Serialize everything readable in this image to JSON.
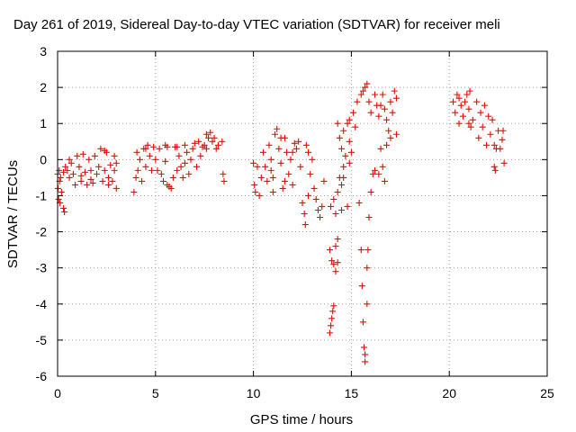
{
  "chart_data": {
    "type": "scatter",
    "title": "Day 261 of 2019, Sidereal Day-to-day VTEC variation (SDTVAR) for receiver meli",
    "xlabel": "GPS time / hours",
    "ylabel": "SDTVAR / TECUs",
    "xlim": [
      0,
      25
    ],
    "ylim": [
      -6,
      3
    ],
    "xticks": [
      0,
      5,
      10,
      15,
      20,
      25
    ],
    "xtick_labels": [
      "0",
      "5",
      "10",
      "15",
      "20",
      "25"
    ],
    "yticks": [
      -6,
      -5,
      -4,
      -3,
      -2,
      -1,
      0,
      1,
      2,
      3
    ],
    "ytick_labels": [
      "-6",
      "-5",
      "-4",
      "-3",
      "-2",
      "-1",
      "0",
      "1",
      "2",
      "3"
    ],
    "grid": true,
    "marker": "+",
    "color": "#ff0000",
    "series": [
      {
        "name": "SDTVAR",
        "points": [
          [
            0.0,
            -0.4
          ],
          [
            0.02,
            -0.8
          ],
          [
            0.05,
            -1.1
          ],
          [
            0.08,
            -0.3
          ],
          [
            0.1,
            -0.6
          ],
          [
            0.12,
            -1.2
          ],
          [
            0.15,
            -0.5
          ],
          [
            0.2,
            -0.9
          ],
          [
            0.3,
            -1.35
          ],
          [
            0.35,
            -1.45
          ],
          [
            0.3,
            -0.35
          ],
          [
            0.4,
            -0.2
          ],
          [
            0.5,
            -0.3
          ],
          [
            0.6,
            -0.5
          ],
          [
            0.7,
            -0.1
          ],
          [
            0.8,
            -0.4
          ],
          [
            0.9,
            -0.7
          ],
          [
            1.0,
            0.1
          ],
          [
            1.1,
            -0.2
          ],
          [
            1.2,
            -0.6
          ],
          [
            1.3,
            0.15
          ],
          [
            1.4,
            -0.35
          ],
          [
            1.5,
            -0.7
          ],
          [
            1.6,
            0.0
          ],
          [
            1.7,
            -0.3
          ],
          [
            1.8,
            -0.65
          ],
          [
            1.9,
            0.1
          ],
          [
            2.0,
            -0.4
          ],
          [
            2.1,
            -0.2
          ],
          [
            2.2,
            0.3
          ],
          [
            2.3,
            -0.6
          ],
          [
            2.4,
            -0.3
          ],
          [
            2.5,
            0.2
          ],
          [
            2.6,
            -0.5
          ],
          [
            2.7,
            -0.15
          ],
          [
            2.8,
            -0.6
          ],
          [
            2.9,
            -0.3
          ],
          [
            3.0,
            -0.8
          ],
          [
            3.0,
            -0.1
          ],
          [
            2.9,
            0.1
          ],
          [
            0.6,
            0.0
          ],
          [
            1.2,
            -0.45
          ],
          [
            1.7,
            -0.55
          ],
          [
            2.4,
            0.25
          ],
          [
            2.6,
            -0.7
          ],
          [
            3.9,
            -0.9
          ],
          [
            4.0,
            -0.5
          ],
          [
            4.05,
            0.2
          ],
          [
            4.1,
            -0.3
          ],
          [
            4.2,
            0.0
          ],
          [
            4.3,
            -0.6
          ],
          [
            4.4,
            0.3
          ],
          [
            4.5,
            -0.2
          ],
          [
            4.6,
            0.4
          ],
          [
            4.7,
            0.1
          ],
          [
            4.8,
            -0.3
          ],
          [
            4.9,
            0.35
          ],
          [
            5.0,
            0.0
          ],
          [
            5.1,
            -0.3
          ],
          [
            5.2,
            0.3
          ],
          [
            5.3,
            -0.4
          ],
          [
            5.4,
            -0.6
          ],
          [
            5.5,
            0.4
          ],
          [
            5.6,
            -0.7
          ],
          [
            5.7,
            -0.75
          ],
          [
            5.8,
            -0.8
          ],
          [
            5.9,
            -0.5
          ],
          [
            6.0,
            0.35
          ],
          [
            6.1,
            -0.3
          ],
          [
            6.2,
            0.1
          ],
          [
            6.3,
            -0.2
          ],
          [
            6.4,
            -0.5
          ],
          [
            6.5,
            0.4
          ],
          [
            6.6,
            0.2
          ],
          [
            6.7,
            -0.4
          ],
          [
            6.8,
            0.0
          ],
          [
            6.9,
            0.3
          ],
          [
            7.0,
            0.45
          ],
          [
            7.1,
            -0.2
          ],
          [
            7.2,
            0.5
          ],
          [
            7.3,
            0.1
          ],
          [
            7.4,
            0.35
          ],
          [
            7.5,
            0.4
          ],
          [
            7.6,
            0.7
          ],
          [
            7.7,
            0.6
          ],
          [
            7.8,
            0.75
          ],
          [
            7.9,
            0.5
          ],
          [
            8.0,
            0.6
          ],
          [
            8.1,
            0.3
          ],
          [
            8.2,
            0.4
          ],
          [
            8.4,
            0.5
          ],
          [
            8.45,
            -0.4
          ],
          [
            8.5,
            -0.6
          ],
          [
            5.5,
            -0.05
          ],
          [
            6.1,
            0.35
          ],
          [
            6.5,
            -0.1
          ],
          [
            7.6,
            0.3
          ],
          [
            4.5,
            0.3
          ],
          [
            5.6,
            0.35
          ],
          [
            10.0,
            -0.1
          ],
          [
            10.05,
            -0.7
          ],
          [
            10.1,
            -0.9
          ],
          [
            10.2,
            -0.2
          ],
          [
            10.3,
            -1.0
          ],
          [
            10.4,
            -0.5
          ],
          [
            10.5,
            0.2
          ],
          [
            10.6,
            -0.2
          ],
          [
            10.7,
            -0.6
          ],
          [
            10.8,
            0.4
          ],
          [
            10.9,
            0.0
          ],
          [
            11.0,
            -0.5
          ],
          [
            11.1,
            0.7
          ],
          [
            11.2,
            0.85
          ],
          [
            11.3,
            0.3
          ],
          [
            11.4,
            -0.1
          ],
          [
            11.5,
            -0.8
          ],
          [
            11.6,
            0.6
          ],
          [
            11.7,
            0.2
          ],
          [
            11.8,
            -0.4
          ],
          [
            11.9,
            0.0
          ],
          [
            12.0,
            -0.7
          ],
          [
            12.1,
            0.45
          ],
          [
            12.2,
            0.3
          ],
          [
            12.3,
            0.5
          ],
          [
            12.4,
            -0.2
          ],
          [
            12.5,
            -1.2
          ],
          [
            12.6,
            -1.5
          ],
          [
            12.65,
            -1.8
          ],
          [
            12.7,
            0.4
          ],
          [
            12.8,
            0.2
          ],
          [
            12.9,
            -0.4
          ],
          [
            13.0,
            0.0
          ],
          [
            13.1,
            -0.8
          ],
          [
            13.2,
            -1.1
          ],
          [
            13.3,
            -1.4
          ],
          [
            13.4,
            -1.6
          ],
          [
            13.5,
            -1.3
          ],
          [
            13.6,
            -0.6
          ],
          [
            11.0,
            -0.9
          ],
          [
            11.4,
            0.6
          ],
          [
            12.0,
            0.2
          ],
          [
            12.8,
            -1.0
          ],
          [
            11.6,
            -0.6
          ],
          [
            10.9,
            -0.3
          ],
          [
            13.9,
            -4.8
          ],
          [
            13.95,
            -4.6
          ],
          [
            14.0,
            -4.4
          ],
          [
            14.05,
            -4.2
          ],
          [
            14.1,
            -4.05
          ],
          [
            13.9,
            -2.5
          ],
          [
            14.0,
            -2.8
          ],
          [
            14.1,
            -2.9
          ],
          [
            14.2,
            -3.1
          ],
          [
            14.3,
            -2.85
          ],
          [
            14.3,
            -2.2
          ],
          [
            13.95,
            -1.3
          ],
          [
            14.1,
            -1.1
          ],
          [
            14.2,
            -1.5
          ],
          [
            14.3,
            -0.9
          ],
          [
            14.4,
            -0.5
          ],
          [
            14.5,
            -0.7
          ],
          [
            14.6,
            -0.2
          ],
          [
            14.7,
            0.1
          ],
          [
            14.8,
            -1.3
          ],
          [
            14.9,
            0.5
          ],
          [
            14.9,
            -0.1
          ],
          [
            14.3,
            1.0
          ],
          [
            14.4,
            0.6
          ],
          [
            14.5,
            0.3
          ],
          [
            14.6,
            0.8
          ],
          [
            14.8,
            1.0
          ],
          [
            14.9,
            1.1
          ],
          [
            15.0,
            0.2
          ],
          [
            15.1,
            1.3
          ],
          [
            15.2,
            0.9
          ],
          [
            15.3,
            1.6
          ],
          [
            15.4,
            -1.2
          ],
          [
            15.5,
            -2.5
          ],
          [
            15.55,
            -3.5
          ],
          [
            15.6,
            -4.5
          ],
          [
            15.65,
            -5.2
          ],
          [
            15.7,
            -5.6
          ],
          [
            15.8,
            -4.0
          ],
          [
            15.85,
            -2.5
          ],
          [
            15.9,
            -1.6
          ],
          [
            16.0,
            -0.9
          ],
          [
            16.1,
            -0.4
          ],
          [
            15.5,
            1.8
          ],
          [
            15.6,
            1.9
          ],
          [
            15.7,
            2.0
          ],
          [
            15.8,
            2.1
          ],
          [
            15.9,
            1.6
          ],
          [
            16.0,
            1.3
          ],
          [
            16.2,
            1.8
          ],
          [
            16.3,
            1.5
          ],
          [
            16.4,
            1.2
          ],
          [
            16.5,
            1.5
          ],
          [
            16.6,
            1.8
          ],
          [
            16.7,
            1.4
          ],
          [
            16.8,
            1.1
          ],
          [
            16.9,
            0.8
          ],
          [
            17.0,
            1.6
          ],
          [
            17.1,
            1.3
          ],
          [
            17.2,
            1.9
          ],
          [
            17.3,
            1.7
          ],
          [
            17.3,
            0.7
          ],
          [
            16.5,
            0.3
          ],
          [
            16.6,
            -0.2
          ],
          [
            16.7,
            -0.6
          ],
          [
            16.8,
            0.4
          ],
          [
            17.0,
            0.6
          ],
          [
            16.4,
            -0.4
          ],
          [
            15.7,
            -5.4
          ],
          [
            15.8,
            -3.0
          ],
          [
            16.2,
            -0.3
          ],
          [
            14.6,
            -0.5
          ],
          [
            14.5,
            -1.4
          ],
          [
            14.2,
            -2.4
          ],
          [
            20.2,
            1.6
          ],
          [
            20.3,
            1.3
          ],
          [
            20.4,
            1.8
          ],
          [
            20.5,
            1.0
          ],
          [
            20.6,
            1.5
          ],
          [
            20.7,
            1.2
          ],
          [
            20.8,
            1.6
          ],
          [
            20.9,
            1.8
          ],
          [
            21.0,
            1.4
          ],
          [
            21.05,
            1.9
          ],
          [
            21.1,
            0.9
          ],
          [
            21.2,
            1.1
          ],
          [
            21.4,
            1.6
          ],
          [
            21.5,
            0.6
          ],
          [
            21.6,
            1.3
          ],
          [
            21.7,
            0.9
          ],
          [
            21.8,
            1.5
          ],
          [
            21.9,
            0.4
          ],
          [
            22.0,
            1.2
          ],
          [
            22.1,
            0.7
          ],
          [
            22.2,
            1.1
          ],
          [
            22.3,
            -0.2
          ],
          [
            22.35,
            -0.3
          ],
          [
            22.4,
            0.3
          ],
          [
            22.5,
            0.8
          ],
          [
            22.6,
            0.3
          ],
          [
            22.7,
            0.55
          ],
          [
            22.75,
            0.8
          ],
          [
            22.8,
            -0.1
          ],
          [
            22.3,
            0.4
          ],
          [
            21.0,
            1.0
          ],
          [
            20.5,
            1.7
          ]
        ]
      }
    ]
  }
}
